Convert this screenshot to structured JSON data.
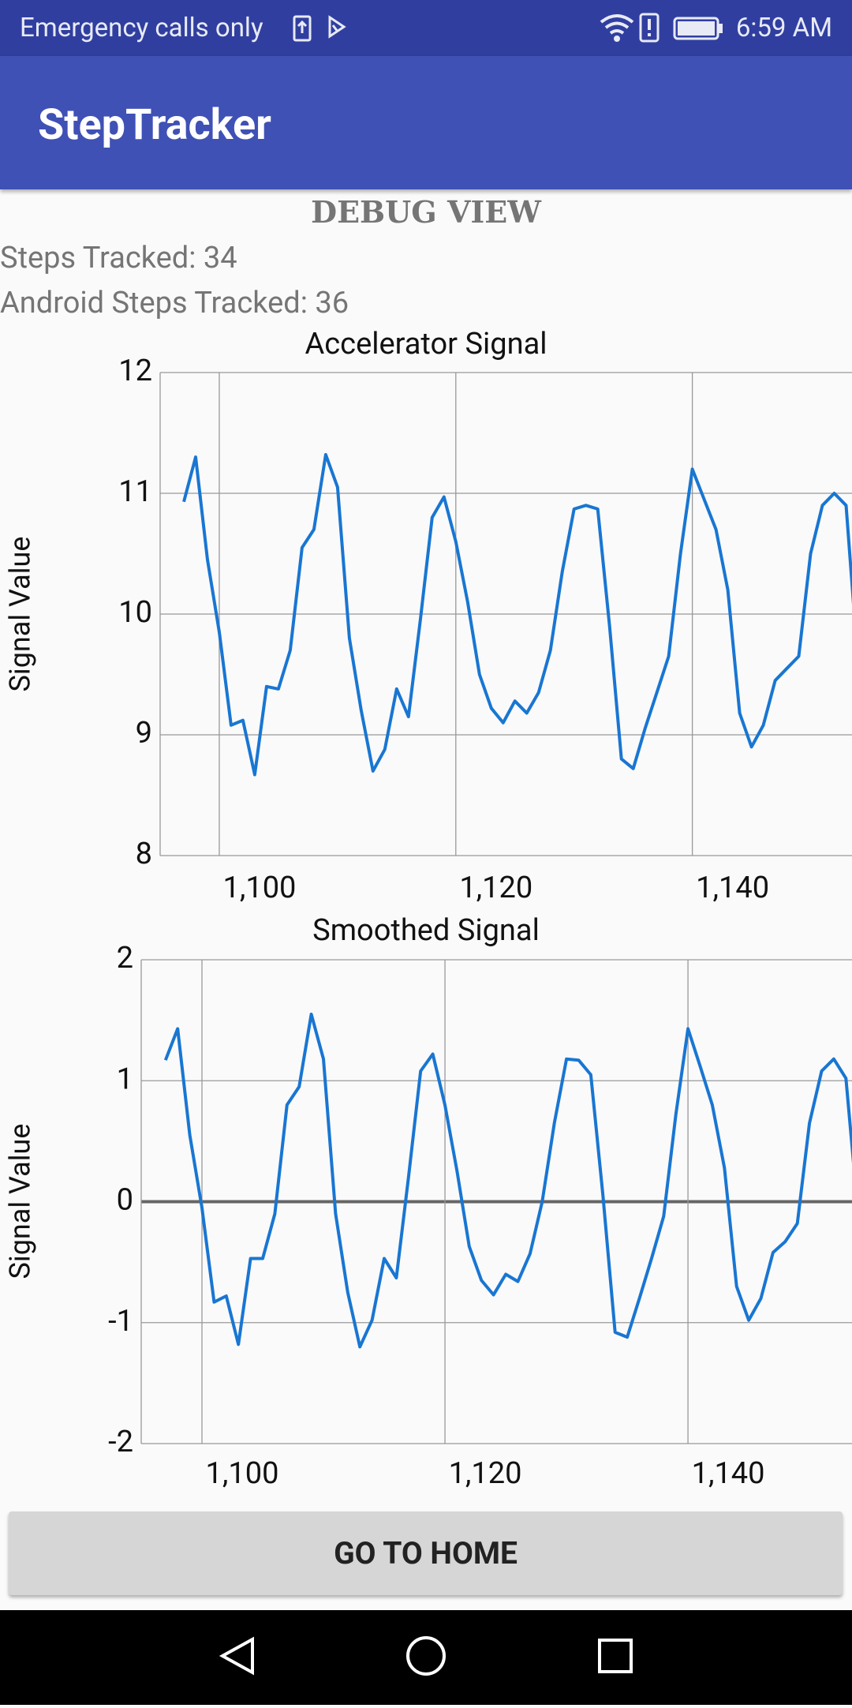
{
  "status_bar": {
    "carrier": "Emergency calls only",
    "time": "6:59 AM"
  },
  "app_bar": {
    "title": "StepTracker"
  },
  "heading": "DEBUG VIEW",
  "steps_tracked": "Steps Tracked: 34",
  "android_steps_tracked": "Android Steps Tracked: 36",
  "chart_data": [
    {
      "type": "line",
      "title": "Accelerator Signal",
      "ylabel": "Signal Value",
      "x": [
        1097,
        1098,
        1099,
        1100,
        1101,
        1102,
        1103,
        1104,
        1105,
        1106,
        1107,
        1108,
        1109,
        1110,
        1111,
        1112,
        1113,
        1114,
        1115,
        1116,
        1117,
        1118,
        1119,
        1120,
        1121,
        1122,
        1123,
        1124,
        1125,
        1126,
        1127,
        1128,
        1129,
        1130,
        1131,
        1132,
        1133,
        1134,
        1135,
        1136,
        1137,
        1138,
        1139,
        1140,
        1141,
        1142,
        1143,
        1144,
        1145,
        1146,
        1147,
        1148,
        1149,
        1150,
        1151,
        1152,
        1153,
        1154
      ],
      "series": [
        {
          "color": "#1976d2",
          "values": [
            10.93,
            11.3,
            10.45,
            9.85,
            9.08,
            9.12,
            8.67,
            9.4,
            9.38,
            9.7,
            10.55,
            10.7,
            11.32,
            11.05,
            9.8,
            9.2,
            8.7,
            8.88,
            9.38,
            9.15,
            9.95,
            10.8,
            10.97,
            10.6,
            10.1,
            9.5,
            9.22,
            9.1,
            9.28,
            9.18,
            9.35,
            9.7,
            10.35,
            10.87,
            10.9,
            10.87,
            9.9,
            8.8,
            8.72,
            9.05,
            9.35,
            9.65,
            10.5,
            11.2,
            10.95,
            10.7,
            10.2,
            9.18,
            8.9,
            9.08,
            9.45,
            9.55,
            9.65,
            10.5,
            10.9,
            11.0,
            10.9,
            9.6
          ]
        }
      ],
      "xlim": [
        1095,
        1153.5
      ],
      "ylim": [
        8,
        12
      ],
      "xticks": [
        {
          "value": 1100,
          "label": "1,100"
        },
        {
          "value": 1120,
          "label": "1,120"
        },
        {
          "value": 1140,
          "label": "1,140"
        }
      ],
      "yticks": [
        8,
        9,
        10,
        11,
        12
      ],
      "grid": true
    },
    {
      "type": "line",
      "title": "Smoothed Signal",
      "ylabel": "Signal Value",
      "x": [
        1097,
        1098,
        1099,
        1100,
        1101,
        1102,
        1103,
        1104,
        1105,
        1106,
        1107,
        1108,
        1109,
        1110,
        1111,
        1112,
        1113,
        1114,
        1115,
        1116,
        1117,
        1118,
        1119,
        1120,
        1121,
        1122,
        1123,
        1124,
        1125,
        1126,
        1127,
        1128,
        1129,
        1130,
        1131,
        1132,
        1133,
        1134,
        1135,
        1136,
        1137,
        1138,
        1139,
        1140,
        1141,
        1142,
        1143,
        1144,
        1145,
        1146,
        1147,
        1148,
        1149,
        1150,
        1151,
        1152,
        1153,
        1154
      ],
      "series": [
        {
          "color": "#1976d2",
          "values": [
            1.17,
            1.43,
            0.55,
            -0.05,
            -0.83,
            -0.78,
            -1.18,
            -0.47,
            -0.47,
            -0.1,
            0.8,
            0.95,
            1.55,
            1.18,
            -0.1,
            -0.75,
            -1.2,
            -0.98,
            -0.47,
            -0.63,
            0.2,
            1.08,
            1.22,
            0.8,
            0.25,
            -0.37,
            -0.65,
            -0.77,
            -0.6,
            -0.66,
            -0.43,
            0,
            0.65,
            1.18,
            1.17,
            1.05,
            0.05,
            -1.08,
            -1.12,
            -0.8,
            -0.47,
            -0.12,
            0.72,
            1.43,
            1.12,
            0.8,
            0.28,
            -0.7,
            -0.98,
            -0.8,
            -0.42,
            -0.33,
            -0.18,
            0.65,
            1.08,
            1.18,
            1.02,
            -0.1
          ]
        }
      ],
      "xlim": [
        1095,
        1153.5
      ],
      "ylim": [
        -2,
        2
      ],
      "xticks": [
        {
          "value": 1100,
          "label": "1,100"
        },
        {
          "value": 1120,
          "label": "1,120"
        },
        {
          "value": 1140,
          "label": "1,140"
        }
      ],
      "yticks": [
        -2,
        -1,
        0,
        1,
        2
      ],
      "grid": true
    }
  ],
  "button": {
    "label": "GO TO HOME"
  }
}
